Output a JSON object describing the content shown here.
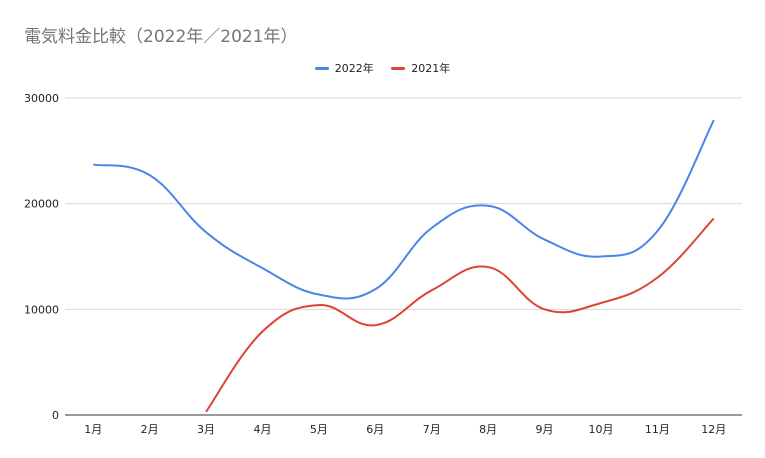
{
  "chart_data": {
    "type": "line",
    "title": "電気料金比較（2022年／2021年）",
    "categories": [
      "1月",
      "2月",
      "3月",
      "4月",
      "5月",
      "6月",
      "7月",
      "8月",
      "9月",
      "10月",
      "11月",
      "12月"
    ],
    "series": [
      {
        "name": "2022年",
        "color": "#4a86e8",
        "values": [
          23700,
          22700,
          17300,
          13900,
          11400,
          11900,
          17700,
          19800,
          16600,
          15000,
          17400,
          27900
        ]
      },
      {
        "name": "2021年",
        "color": "#db4437",
        "values": [
          null,
          null,
          300,
          7900,
          10400,
          8500,
          11800,
          14000,
          10000,
          10600,
          13000,
          18600
        ]
      }
    ],
    "ylim": [
      0,
      30000
    ],
    "yticks": [
      "0",
      "10000",
      "20000",
      "30000"
    ],
    "grid": true,
    "legend_position": "top"
  }
}
